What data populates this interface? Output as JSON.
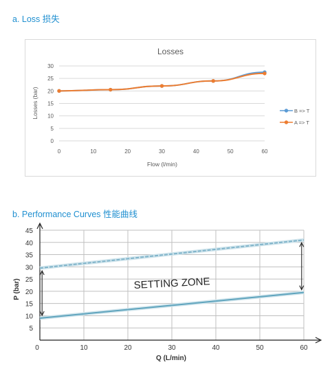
{
  "section_a": {
    "title": "a. Loss 损失"
  },
  "section_b": {
    "title": "b. Performance Curves 性能曲线"
  },
  "chart_data": [
    {
      "type": "line",
      "title": "Losses",
      "xlabel": "Flow (l/min)",
      "ylabel": "Losses (bar)",
      "xlim": [
        0,
        60
      ],
      "ylim": [
        0,
        30
      ],
      "x_ticks": [
        "0",
        "10",
        "20",
        "30",
        "40",
        "50",
        "60"
      ],
      "y_ticks": [
        "0",
        "5",
        "10",
        "15",
        "20",
        "25",
        "30"
      ],
      "grid": true,
      "legend_position": "right",
      "series": [
        {
          "name": "B => T",
          "color": "#5b9bd5",
          "points": [
            [
              0,
              20
            ],
            [
              15,
              20.5
            ],
            [
              30,
              22
            ],
            [
              45,
              24
            ],
            [
              60,
              27.5
            ]
          ]
        },
        {
          "name": "A => T",
          "color": "#ed7d31",
          "points": [
            [
              0,
              20
            ],
            [
              15,
              20.5
            ],
            [
              30,
              22
            ],
            [
              45,
              24
            ],
            [
              60,
              27
            ]
          ]
        }
      ]
    },
    {
      "type": "line",
      "title": "",
      "xlabel": "Q (L/min)",
      "ylabel": "P (bar)",
      "xlim": [
        0,
        60
      ],
      "ylim": [
        0,
        45
      ],
      "x_ticks": [
        "0",
        "10",
        "20",
        "30",
        "40",
        "50",
        "60"
      ],
      "y_ticks": [
        "5",
        "10",
        "15",
        "20",
        "25",
        "30",
        "35",
        "40",
        "45"
      ],
      "grid": true,
      "annotation": "SETTING ZONE",
      "series": [
        {
          "style": "dashed",
          "color": "#7fb3c9",
          "points": [
            [
              0,
              29.5
            ],
            [
              60,
              41
            ]
          ]
        },
        {
          "style": "solid",
          "color": "#5fa4bd",
          "points": [
            [
              0,
              9
            ],
            [
              60,
              19.5
            ]
          ]
        }
      ]
    }
  ]
}
